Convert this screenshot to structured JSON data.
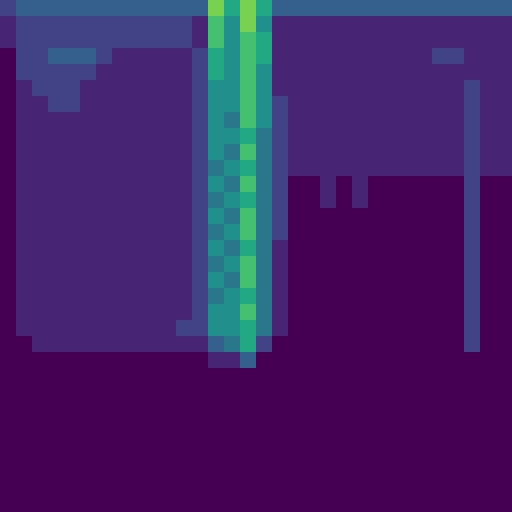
{
  "chart_data": {
    "type": "heatmap",
    "tick_labels": false,
    "zlim": [
      0,
      10
    ],
    "cells": [
      [
        2,
        3,
        3,
        3,
        3,
        3,
        3,
        3,
        3,
        3,
        3,
        3,
        3,
        8,
        6,
        8,
        6,
        3,
        3,
        3,
        3,
        3,
        3,
        3,
        3,
        3,
        3,
        3,
        3,
        3,
        3,
        3
      ],
      [
        1,
        2,
        2,
        2,
        2,
        2,
        2,
        2,
        2,
        2,
        2,
        2,
        1,
        7,
        5,
        8,
        5,
        1,
        1,
        1,
        1,
        1,
        1,
        1,
        1,
        1,
        1,
        1,
        1,
        1,
        1,
        1
      ],
      [
        1,
        2,
        2,
        2,
        2,
        2,
        2,
        2,
        2,
        2,
        2,
        2,
        1,
        7,
        5,
        7,
        6,
        1,
        1,
        1,
        1,
        1,
        1,
        1,
        1,
        1,
        1,
        1,
        1,
        1,
        1,
        1
      ],
      [
        0,
        2,
        2,
        3,
        3,
        3,
        2,
        1,
        1,
        1,
        1,
        1,
        2,
        6,
        5,
        7,
        6,
        1,
        1,
        1,
        1,
        1,
        1,
        1,
        1,
        1,
        1,
        2,
        2,
        1,
        1,
        1
      ],
      [
        0,
        2,
        2,
        2,
        2,
        2,
        1,
        1,
        1,
        1,
        1,
        1,
        2,
        6,
        5,
        7,
        5,
        1,
        1,
        1,
        1,
        1,
        1,
        1,
        1,
        1,
        1,
        1,
        1,
        1,
        1,
        1
      ],
      [
        0,
        1,
        2,
        2,
        2,
        1,
        1,
        1,
        1,
        1,
        1,
        1,
        2,
        5,
        5,
        7,
        5,
        1,
        1,
        1,
        1,
        1,
        1,
        1,
        1,
        1,
        1,
        1,
        1,
        2,
        1,
        1
      ],
      [
        0,
        1,
        1,
        2,
        2,
        1,
        1,
        1,
        1,
        1,
        1,
        1,
        2,
        5,
        5,
        7,
        5,
        2,
        1,
        1,
        1,
        1,
        1,
        1,
        1,
        1,
        1,
        1,
        1,
        2,
        1,
        1
      ],
      [
        0,
        1,
        1,
        1,
        1,
        1,
        1,
        1,
        1,
        1,
        1,
        1,
        2,
        5,
        4,
        7,
        5,
        2,
        1,
        1,
        1,
        1,
        1,
        1,
        1,
        1,
        1,
        1,
        1,
        2,
        1,
        1
      ],
      [
        0,
        1,
        1,
        1,
        1,
        1,
        1,
        1,
        1,
        1,
        1,
        1,
        2,
        5,
        5,
        6,
        4,
        2,
        1,
        1,
        1,
        1,
        1,
        1,
        1,
        1,
        1,
        1,
        1,
        2,
        1,
        1
      ],
      [
        0,
        1,
        1,
        1,
        1,
        1,
        1,
        1,
        1,
        1,
        1,
        1,
        2,
        5,
        4,
        7,
        4,
        2,
        1,
        1,
        1,
        1,
        1,
        1,
        1,
        1,
        1,
        1,
        1,
        2,
        1,
        1
      ],
      [
        0,
        1,
        1,
        1,
        1,
        1,
        1,
        1,
        1,
        1,
        1,
        1,
        2,
        4,
        5,
        6,
        4,
        2,
        1,
        1,
        1,
        1,
        1,
        1,
        1,
        1,
        1,
        1,
        1,
        2,
        1,
        1
      ],
      [
        0,
        1,
        1,
        1,
        1,
        1,
        1,
        1,
        1,
        1,
        1,
        1,
        2,
        5,
        4,
        7,
        4,
        2,
        0,
        0,
        1,
        0,
        1,
        0,
        0,
        0,
        0,
        0,
        0,
        2,
        0,
        0
      ],
      [
        0,
        1,
        1,
        1,
        1,
        1,
        1,
        1,
        1,
        1,
        1,
        1,
        2,
        4,
        5,
        6,
        4,
        2,
        0,
        0,
        1,
        0,
        1,
        0,
        0,
        0,
        0,
        0,
        0,
        2,
        0,
        0
      ],
      [
        0,
        1,
        1,
        1,
        1,
        1,
        1,
        1,
        1,
        1,
        1,
        1,
        2,
        5,
        4,
        7,
        4,
        2,
        0,
        0,
        0,
        0,
        0,
        0,
        0,
        0,
        0,
        0,
        0,
        2,
        0,
        0
      ],
      [
        0,
        1,
        1,
        1,
        1,
        1,
        1,
        1,
        1,
        1,
        1,
        1,
        2,
        4,
        5,
        7,
        4,
        2,
        0,
        0,
        0,
        0,
        0,
        0,
        0,
        0,
        0,
        0,
        0,
        2,
        0,
        0
      ],
      [
        0,
        1,
        1,
        1,
        1,
        1,
        1,
        1,
        1,
        1,
        1,
        1,
        2,
        5,
        4,
        6,
        4,
        1,
        0,
        0,
        0,
        0,
        0,
        0,
        0,
        0,
        0,
        0,
        0,
        2,
        0,
        0
      ],
      [
        0,
        1,
        1,
        1,
        1,
        1,
        1,
        1,
        1,
        1,
        1,
        1,
        2,
        4,
        5,
        7,
        4,
        1,
        0,
        0,
        0,
        0,
        0,
        0,
        0,
        0,
        0,
        0,
        0,
        2,
        0,
        0
      ],
      [
        0,
        1,
        1,
        1,
        1,
        1,
        1,
        1,
        1,
        1,
        1,
        1,
        2,
        5,
        4,
        7,
        4,
        1,
        0,
        0,
        0,
        0,
        0,
        0,
        0,
        0,
        0,
        0,
        0,
        2,
        0,
        0
      ],
      [
        0,
        1,
        1,
        1,
        1,
        1,
        1,
        1,
        1,
        1,
        1,
        1,
        2,
        4,
        5,
        6,
        4,
        1,
        0,
        0,
        0,
        0,
        0,
        0,
        0,
        0,
        0,
        0,
        0,
        2,
        0,
        0
      ],
      [
        0,
        1,
        1,
        1,
        1,
        1,
        1,
        1,
        1,
        1,
        1,
        1,
        2,
        5,
        5,
        7,
        4,
        1,
        0,
        0,
        0,
        0,
        0,
        0,
        0,
        0,
        0,
        0,
        0,
        2,
        0,
        0
      ],
      [
        0,
        1,
        1,
        1,
        1,
        1,
        1,
        1,
        1,
        1,
        1,
        2,
        2,
        5,
        5,
        6,
        4,
        1,
        0,
        0,
        0,
        0,
        0,
        0,
        0,
        0,
        0,
        0,
        0,
        2,
        0,
        0
      ],
      [
        0,
        0,
        1,
        1,
        1,
        1,
        1,
        1,
        1,
        1,
        1,
        1,
        1,
        3,
        4,
        6,
        2,
        0,
        0,
        0,
        0,
        0,
        0,
        0,
        0,
        0,
        0,
        0,
        0,
        2,
        0,
        0
      ],
      [
        0,
        0,
        0,
        0,
        0,
        0,
        0,
        0,
        0,
        0,
        0,
        0,
        0,
        1,
        1,
        3,
        0,
        0,
        0,
        0,
        0,
        0,
        0,
        0,
        0,
        0,
        0,
        0,
        0,
        0,
        0,
        0
      ],
      [
        0,
        0,
        0,
        0,
        0,
        0,
        0,
        0,
        0,
        0,
        0,
        0,
        0,
        0,
        0,
        0,
        0,
        0,
        0,
        0,
        0,
        0,
        0,
        0,
        0,
        0,
        0,
        0,
        0,
        0,
        0,
        0
      ],
      [
        0,
        0,
        0,
        0,
        0,
        0,
        0,
        0,
        0,
        0,
        0,
        0,
        0,
        0,
        0,
        0,
        0,
        0,
        0,
        0,
        0,
        0,
        0,
        0,
        0,
        0,
        0,
        0,
        0,
        0,
        0,
        0
      ],
      [
        0,
        0,
        0,
        0,
        0,
        0,
        0,
        0,
        0,
        0,
        0,
        0,
        0,
        0,
        0,
        0,
        0,
        0,
        0,
        0,
        0,
        0,
        0,
        0,
        0,
        0,
        0,
        0,
        0,
        0,
        0,
        0
      ],
      [
        0,
        0,
        0,
        0,
        0,
        0,
        0,
        0,
        0,
        0,
        0,
        0,
        0,
        0,
        0,
        0,
        0,
        0,
        0,
        0,
        0,
        0,
        0,
        0,
        0,
        0,
        0,
        0,
        0,
        0,
        0,
        0
      ],
      [
        0,
        0,
        0,
        0,
        0,
        0,
        0,
        0,
        0,
        0,
        0,
        0,
        0,
        0,
        0,
        0,
        0,
        0,
        0,
        0,
        0,
        0,
        0,
        0,
        0,
        0,
        0,
        0,
        0,
        0,
        0,
        0
      ],
      [
        0,
        0,
        0,
        0,
        0,
        0,
        0,
        0,
        0,
        0,
        0,
        0,
        0,
        0,
        0,
        0,
        0,
        0,
        0,
        0,
        0,
        0,
        0,
        0,
        0,
        0,
        0,
        0,
        0,
        0,
        0,
        0
      ],
      [
        0,
        0,
        0,
        0,
        0,
        0,
        0,
        0,
        0,
        0,
        0,
        0,
        0,
        0,
        0,
        0,
        0,
        0,
        0,
        0,
        0,
        0,
        0,
        0,
        0,
        0,
        0,
        0,
        0,
        0,
        0,
        0
      ],
      [
        0,
        0,
        0,
        0,
        0,
        0,
        0,
        0,
        0,
        0,
        0,
        0,
        0,
        0,
        0,
        0,
        0,
        0,
        0,
        0,
        0,
        0,
        0,
        0,
        0,
        0,
        0,
        0,
        0,
        0,
        0,
        0
      ],
      [
        0,
        0,
        0,
        0,
        0,
        0,
        0,
        0,
        0,
        0,
        0,
        0,
        0,
        0,
        0,
        0,
        0,
        0,
        0,
        0,
        0,
        0,
        0,
        0,
        0,
        0,
        0,
        0,
        0,
        0,
        0,
        0
      ]
    ]
  }
}
